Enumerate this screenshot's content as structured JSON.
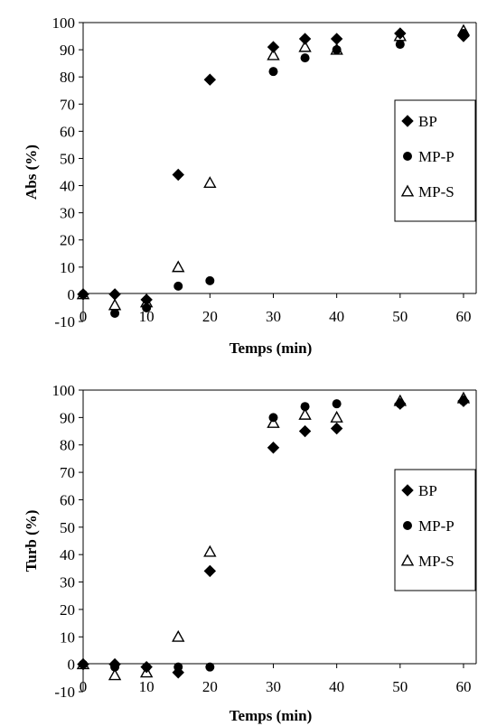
{
  "chart_data": [
    {
      "type": "scatter",
      "title": "",
      "xlabel": "Temps (min)",
      "ylabel": "Abs (%)",
      "xlim": [
        0,
        62
      ],
      "ylim": [
        -10,
        100
      ],
      "xticks": [
        "0",
        "10",
        "20",
        "30",
        "40",
        "50",
        "60"
      ],
      "yticks": [
        "-10",
        "0",
        "10",
        "20",
        "30",
        "40",
        "50",
        "60",
        "70",
        "80",
        "90",
        "100"
      ],
      "legend_position": "right",
      "series": [
        {
          "name": "BP",
          "marker": "diamond",
          "color": "#000000",
          "x": [
            0,
            5,
            10,
            15,
            20,
            30,
            35,
            40,
            50,
            60
          ],
          "y": [
            0,
            0,
            -2,
            44,
            79,
            91,
            94,
            94,
            96,
            95
          ]
        },
        {
          "name": "MP-P",
          "marker": "circle",
          "color": "#000000",
          "x": [
            0,
            5,
            10,
            15,
            20,
            30,
            35,
            40,
            50,
            60
          ],
          "y": [
            0,
            -7,
            -5,
            3,
            5,
            82,
            87,
            90,
            92,
            96
          ]
        },
        {
          "name": "MP-S",
          "marker": "triangle-open",
          "color": "#000000",
          "x": [
            0,
            5,
            10,
            15,
            20,
            30,
            35,
            40,
            50,
            60
          ],
          "y": [
            0,
            -4,
            -3,
            10,
            41,
            88,
            91,
            90,
            95,
            97
          ]
        }
      ]
    },
    {
      "type": "scatter",
      "title": "",
      "xlabel": "Temps (min)",
      "ylabel": "Turb (%)",
      "xlim": [
        0,
        62
      ],
      "ylim": [
        -10,
        100
      ],
      "xticks": [
        "0",
        "10",
        "20",
        "30",
        "40",
        "50",
        "60"
      ],
      "yticks": [
        "-10",
        "0",
        "10",
        "20",
        "30",
        "40",
        "50",
        "60",
        "70",
        "80",
        "90",
        "100"
      ],
      "legend_position": "right",
      "series": [
        {
          "name": "BP",
          "marker": "diamond",
          "color": "#000000",
          "x": [
            0,
            5,
            10,
            15,
            20,
            30,
            35,
            40,
            50,
            60
          ],
          "y": [
            0,
            0,
            -1,
            -3,
            34,
            79,
            85,
            86,
            95,
            96
          ]
        },
        {
          "name": "MP-P",
          "marker": "circle",
          "color": "#000000",
          "x": [
            0,
            5,
            10,
            15,
            20,
            30,
            35,
            40,
            50,
            60
          ],
          "y": [
            0,
            -1,
            -1,
            -1,
            -1,
            90,
            94,
            95,
            95,
            96
          ]
        },
        {
          "name": "MP-S",
          "marker": "triangle-open",
          "color": "#000000",
          "x": [
            0,
            5,
            10,
            15,
            20,
            30,
            35,
            40,
            50,
            60
          ],
          "y": [
            0,
            -4,
            -3,
            10,
            41,
            88,
            91,
            90,
            96,
            97
          ]
        }
      ]
    }
  ]
}
